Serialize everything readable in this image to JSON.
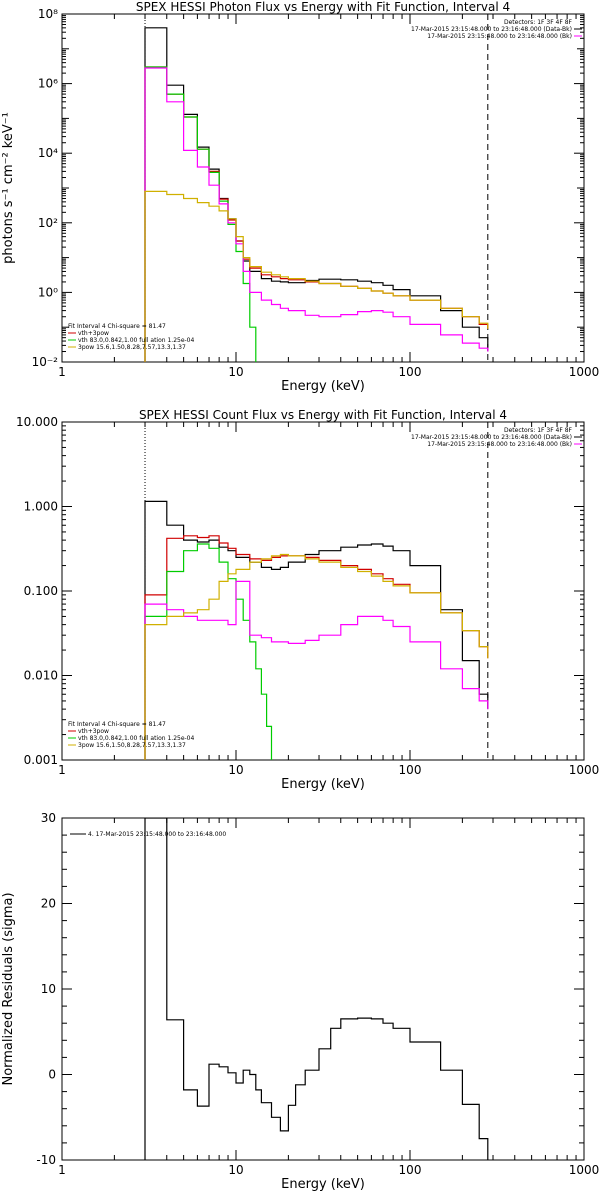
{
  "chart_data": [
    {
      "type": "line",
      "title": "SPEX HESSI Photon Flux vs Energy with Fit Function, Interval 4",
      "xlabel": "Energy (keV)",
      "ylabel": "photons s⁻¹ cm⁻² keV⁻¹",
      "xscale": "log",
      "yscale": "log",
      "xlim": [
        1,
        1000
      ],
      "ylim": [
        0.01,
        100000000
      ],
      "xticks": [
        "1",
        "10",
        "100",
        "1000"
      ],
      "yticks": [
        "10⁻²",
        "10⁰",
        "10²",
        "10⁴",
        "10⁶",
        "10⁸"
      ],
      "legend_top": [
        "Detectors: 1F 3F 4F 8F",
        "17-Mar-2015 23:15:48.000 to 23:16:48.000 (Data-Bk)",
        "17-Mar-2015 23:15:48.000 to 23:16:48.000 (Bk)"
      ],
      "legend_bottom": [
        "Fit Interval 4   Chi-square = 81.47",
        "vth+3pow",
        "vth 83.0,0.842,1.00  full ation 1.25e-04",
        "3pow 15.6,1.50,8.28,7.57,13.3,1.37"
      ],
      "vlines": [
        3,
        280
      ],
      "series": [
        {
          "color": "#000000",
          "x": [
            3,
            4,
            5,
            6,
            7,
            8,
            9,
            10,
            11,
            12,
            14,
            16,
            18,
            20,
            25,
            30,
            40,
            50,
            60,
            70,
            80,
            100,
            150,
            200,
            250,
            280
          ],
          "values": [
            40000000,
            900000,
            130000,
            15000,
            3500,
            500,
            130,
            30,
            8,
            4,
            2.5,
            2.1,
            2.0,
            1.9,
            2.2,
            2.4,
            2.3,
            2.1,
            1.9,
            1.6,
            1.2,
            0.8,
            0.3,
            0.1,
            0.05,
            0.02
          ]
        },
        {
          "color": "#d00000",
          "x": [
            3,
            4,
            5,
            6,
            7,
            8,
            9,
            10,
            11,
            12,
            14,
            16,
            18,
            20,
            25,
            30,
            40,
            50,
            60,
            70,
            80,
            100,
            150,
            200,
            250,
            280
          ],
          "values": [
            3000000,
            500000,
            110000,
            13000,
            3000,
            480,
            120,
            30,
            9,
            5,
            3.2,
            2.8,
            2.5,
            2.3,
            2.0,
            1.8,
            1.5,
            1.3,
            1.1,
            0.95,
            0.8,
            0.6,
            0.35,
            0.2,
            0.12,
            0.09
          ]
        },
        {
          "color": "#00cc00",
          "x": [
            3,
            4,
            5,
            6,
            7,
            8,
            9,
            10,
            11,
            12,
            13
          ],
          "values": [
            3000000,
            500000,
            110000,
            13000,
            2800,
            420,
            90,
            15,
            1.8,
            0.1,
            0.01
          ]
        },
        {
          "color": "#ff00ff",
          "x": [
            3,
            4,
            5,
            6,
            7,
            8,
            9,
            10,
            11,
            12,
            14,
            16,
            18,
            20,
            25,
            30,
            40,
            50,
            60,
            70,
            80,
            100,
            150,
            200,
            250,
            280
          ],
          "values": [
            2800000,
            300000,
            12000,
            4000,
            1200,
            350,
            100,
            25,
            4,
            1.0,
            0.6,
            0.45,
            0.35,
            0.3,
            0.22,
            0.2,
            0.23,
            0.28,
            0.3,
            0.27,
            0.2,
            0.12,
            0.06,
            0.035,
            0.025,
            0.02
          ]
        },
        {
          "color": "#d0b000",
          "x": [
            3,
            4,
            5,
            6,
            7,
            8,
            9,
            10,
            11,
            12,
            14,
            16,
            18,
            20,
            25,
            30,
            40,
            50,
            60,
            70,
            80,
            100,
            150,
            200,
            250,
            280
          ],
          "values": [
            800,
            650,
            500,
            380,
            300,
            220,
            130,
            40,
            10,
            5.5,
            3.8,
            3.2,
            2.8,
            2.5,
            2.1,
            1.8,
            1.5,
            1.3,
            1.1,
            0.95,
            0.8,
            0.6,
            0.35,
            0.2,
            0.13,
            0.09
          ]
        }
      ]
    },
    {
      "type": "line",
      "title": "SPEX HESSI Count Flux vs Energy with Fit Function, Interval 4",
      "xlabel": "Energy (keV)",
      "ylabel": "",
      "xscale": "log",
      "yscale": "log",
      "xlim": [
        1,
        1000
      ],
      "ylim": [
        0.001,
        10
      ],
      "xticks": [
        "1",
        "10",
        "100",
        "1000"
      ],
      "yticks": [
        "0.001",
        "0.010",
        "0.100",
        "1.000",
        "10.000"
      ],
      "legend_top": [
        "Detectors: 1F 3F 4F 8F",
        "17-Mar-2015 23:15:48.000 to 23:16:48.000 (Data-Bk)",
        "17-Mar-2015 23:15:48.000 to 23:16:48.000 (Bk)"
      ],
      "legend_bottom": [
        "Fit Interval 4   Chi-square = 81.47",
        "vth+3pow",
        "vth 83.0,0.842,1.00  full ation 1.25e-04",
        "3pow 15.6,1.50,8.28,7.57,13.3,1.37"
      ],
      "vlines": [
        3,
        280
      ],
      "series": [
        {
          "color": "#000000",
          "x": [
            3,
            4,
            5,
            6,
            7,
            8,
            9,
            10,
            12,
            14,
            16,
            18,
            20,
            25,
            30,
            40,
            50,
            60,
            70,
            80,
            100,
            150,
            200,
            250,
            280
          ],
          "values": [
            1.15,
            0.6,
            0.4,
            0.38,
            0.4,
            0.33,
            0.3,
            0.25,
            0.22,
            0.19,
            0.18,
            0.19,
            0.22,
            0.27,
            0.3,
            0.33,
            0.35,
            0.36,
            0.34,
            0.3,
            0.2,
            0.06,
            0.015,
            0.006,
            0.004
          ]
        },
        {
          "color": "#d00000",
          "x": [
            3,
            4,
            5,
            6,
            7,
            8,
            9,
            10,
            12,
            14,
            16,
            18,
            20,
            25,
            30,
            40,
            50,
            60,
            70,
            80,
            100,
            150,
            200,
            250,
            280
          ],
          "values": [
            0.09,
            0.42,
            0.45,
            0.43,
            0.45,
            0.37,
            0.32,
            0.27,
            0.24,
            0.23,
            0.25,
            0.26,
            0.26,
            0.25,
            0.23,
            0.2,
            0.18,
            0.16,
            0.14,
            0.12,
            0.095,
            0.055,
            0.034,
            0.022,
            0.016
          ]
        },
        {
          "color": "#00cc00",
          "x": [
            3,
            4,
            5,
            6,
            7,
            8,
            9,
            10,
            11,
            12,
            13,
            14,
            15,
            16
          ],
          "values": [
            0.05,
            0.17,
            0.3,
            0.36,
            0.32,
            0.22,
            0.14,
            0.08,
            0.045,
            0.025,
            0.012,
            0.006,
            0.0025,
            0.001
          ]
        },
        {
          "color": "#ff00ff",
          "x": [
            3,
            4,
            5,
            6,
            7,
            8,
            9,
            10,
            12,
            14,
            16,
            18,
            20,
            25,
            30,
            40,
            50,
            60,
            70,
            80,
            100,
            150,
            200,
            250,
            280
          ],
          "values": [
            0.07,
            0.06,
            0.05,
            0.045,
            0.045,
            0.045,
            0.04,
            0.13,
            0.03,
            0.028,
            0.025,
            0.025,
            0.024,
            0.026,
            0.03,
            0.04,
            0.05,
            0.05,
            0.045,
            0.038,
            0.025,
            0.012,
            0.007,
            0.005,
            0.004
          ]
        },
        {
          "color": "#d0b000",
          "x": [
            3,
            4,
            5,
            6,
            7,
            8,
            9,
            10,
            12,
            14,
            16,
            18,
            20,
            25,
            30,
            40,
            50,
            60,
            70,
            80,
            100,
            150,
            200,
            250,
            280
          ],
          "values": [
            0.04,
            0.05,
            0.055,
            0.06,
            0.08,
            0.13,
            0.16,
            0.18,
            0.22,
            0.24,
            0.26,
            0.27,
            0.26,
            0.24,
            0.22,
            0.19,
            0.17,
            0.15,
            0.13,
            0.115,
            0.095,
            0.055,
            0.034,
            0.022,
            0.016
          ]
        }
      ]
    },
    {
      "type": "line",
      "title": "",
      "xlabel": "Energy (keV)",
      "ylabel": "Normalized Residuals (sigma)",
      "xscale": "log",
      "yscale": "linear",
      "xlim": [
        1,
        1000
      ],
      "ylim": [
        -10,
        30
      ],
      "xticks": [
        "1",
        "10",
        "100",
        "1000"
      ],
      "yticks": [
        "-10",
        "0",
        "10",
        "20",
        "30"
      ],
      "legend": "4. 17-Mar-2015 23:15:48.000 to 23:16:48.000",
      "series": [
        {
          "color": "#000000",
          "x": [
            3,
            4,
            5,
            6,
            7,
            8,
            9,
            10,
            11,
            12,
            13,
            14,
            16,
            18,
            20,
            22,
            25,
            30,
            35,
            40,
            50,
            60,
            70,
            80,
            100,
            150,
            200,
            250,
            280
          ],
          "values": [
            30,
            6.4,
            -1.8,
            -3.7,
            1.2,
            0.9,
            0.2,
            -1.0,
            0.5,
            0,
            -1.8,
            -3.3,
            -5.0,
            -6.6,
            -3.6,
            -1.2,
            0.5,
            3.0,
            5.4,
            6.5,
            6.6,
            6.5,
            6.0,
            5.4,
            3.8,
            0.5,
            -3.5,
            -7.5,
            -10.0
          ]
        }
      ]
    }
  ]
}
